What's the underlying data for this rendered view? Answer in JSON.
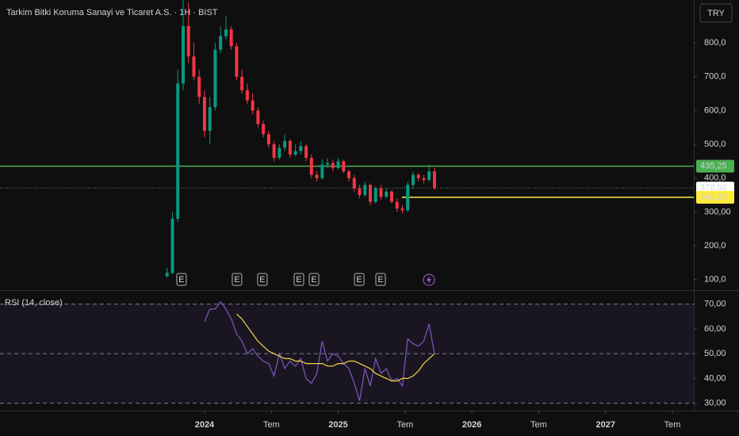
{
  "chart_data": {
    "type": "candlestick",
    "title": "Tarkim Bitki Koruma Sanayi ve Ticaret A.S. · 1H · BIST",
    "currency": "TRY",
    "up_color": "#089981",
    "down_color": "#f23645",
    "x": [
      2023.72,
      2023.76,
      2023.8,
      2023.84,
      2023.88,
      2023.92,
      2023.96,
      2024.0,
      2024.04,
      2024.08,
      2024.12,
      2024.16,
      2024.2,
      2024.24,
      2024.28,
      2024.32,
      2024.36,
      2024.4,
      2024.44,
      2024.48,
      2024.52,
      2024.56,
      2024.6,
      2024.64,
      2024.68,
      2024.72,
      2024.76,
      2024.8,
      2024.84,
      2024.88,
      2024.92,
      2024.96,
      2025.0,
      2025.04,
      2025.08,
      2025.12,
      2025.16,
      2025.2,
      2025.24,
      2025.28,
      2025.32,
      2025.36,
      2025.4,
      2025.44,
      2025.48,
      2025.52,
      2025.56,
      2025.6,
      2025.64,
      2025.68,
      2025.72
    ],
    "open": [
      110,
      120,
      280,
      680,
      850,
      760,
      700,
      640,
      540,
      610,
      780,
      820,
      840,
      790,
      700,
      660,
      630,
      600,
      560,
      530,
      500,
      460,
      490,
      510,
      470,
      480,
      495,
      460,
      410,
      400,
      440,
      445,
      430,
      450,
      420,
      400,
      370,
      350,
      380,
      330,
      370,
      345,
      360,
      330,
      310,
      305,
      380,
      410,
      400,
      395,
      420
    ],
    "high": [
      135,
      300,
      720,
      930,
      920,
      800,
      720,
      660,
      640,
      800,
      850,
      880,
      850,
      800,
      720,
      680,
      650,
      610,
      570,
      540,
      510,
      500,
      530,
      515,
      500,
      510,
      500,
      470,
      420,
      455,
      460,
      455,
      460,
      455,
      425,
      410,
      380,
      390,
      385,
      375,
      380,
      370,
      365,
      340,
      320,
      390,
      420,
      415,
      410,
      440,
      430
    ],
    "low": [
      105,
      115,
      270,
      660,
      740,
      690,
      620,
      520,
      500,
      600,
      770,
      810,
      780,
      690,
      650,
      620,
      590,
      550,
      520,
      490,
      450,
      455,
      480,
      460,
      465,
      470,
      450,
      400,
      390,
      395,
      430,
      420,
      425,
      415,
      390,
      360,
      340,
      345,
      320,
      325,
      335,
      340,
      325,
      300,
      295,
      300,
      370,
      390,
      385,
      390,
      365
    ],
    "close": [
      120,
      280,
      680,
      850,
      760,
      700,
      640,
      540,
      610,
      780,
      820,
      840,
      790,
      700,
      660,
      630,
      600,
      560,
      530,
      500,
      460,
      490,
      510,
      470,
      480,
      495,
      460,
      410,
      400,
      440,
      445,
      430,
      450,
      420,
      400,
      370,
      350,
      380,
      330,
      370,
      345,
      360,
      330,
      310,
      305,
      380,
      410,
      400,
      395,
      420,
      370
    ],
    "ylim": [
      71,
      927
    ],
    "yticks": [
      {
        "value": 100,
        "label": "100,0"
      },
      {
        "value": 200,
        "label": "200,0"
      },
      {
        "value": 300,
        "label": "300,00"
      },
      {
        "value": 400,
        "label": "400,0"
      },
      {
        "value": 500,
        "label": "500,0"
      },
      {
        "value": 600,
        "label": "600,0"
      },
      {
        "value": 700,
        "label": "700,0"
      },
      {
        "value": 800,
        "label": "800,0"
      }
    ],
    "xlim": [
      2022.47,
      2027.66
    ],
    "xticks": [
      {
        "value": 2024,
        "label": "2024"
      },
      {
        "value": 2024.5,
        "label": "Tem"
      },
      {
        "value": 2025,
        "label": "2025"
      },
      {
        "value": 2025.5,
        "label": "Tem"
      },
      {
        "value": 2026,
        "label": "2026"
      },
      {
        "value": 2026.5,
        "label": "Tem"
      },
      {
        "value": 2027,
        "label": "2027"
      },
      {
        "value": 2027.5,
        "label": "Tem"
      }
    ],
    "levels": [
      {
        "value": 435.25,
        "label": "435,25",
        "color": "#4caf50"
      },
      {
        "value": 370.5,
        "label": "370,50",
        "color": "#ffffff"
      },
      {
        "value": 343.25,
        "label": "343,25",
        "color": "#ffeb3b"
      }
    ],
    "events": [
      {
        "x": 2023.828,
        "label": "E"
      },
      {
        "x": 2024.243,
        "label": "E"
      },
      {
        "x": 2024.433,
        "label": "E"
      },
      {
        "x": 2024.706,
        "label": "E"
      },
      {
        "x": 2024.819,
        "label": "E"
      },
      {
        "x": 2025.157,
        "label": "E"
      },
      {
        "x": 2025.317,
        "label": "E"
      }
    ],
    "indicator": {
      "type": "line",
      "title": "RSI (14, close)",
      "ylim": [
        27,
        75
      ],
      "yticks": [
        {
          "value": 30,
          "label": "30,00"
        },
        {
          "value": 40,
          "label": "40,00"
        },
        {
          "value": 50,
          "label": "50,00"
        },
        {
          "value": 60,
          "label": "60,00"
        },
        {
          "value": 70,
          "label": "70,00"
        }
      ],
      "bands": [
        30,
        50,
        70
      ],
      "series": [
        {
          "color": "#7e57c2",
          "values": [
            null,
            null,
            null,
            null,
            null,
            null,
            null,
            63,
            68,
            68,
            71,
            68,
            64,
            58,
            55,
            50,
            52,
            49,
            47,
            46,
            41,
            50,
            44,
            47,
            45,
            48,
            40,
            38,
            42,
            55,
            47,
            50,
            49,
            46,
            44,
            38,
            31,
            44,
            37,
            48,
            42,
            44,
            39,
            40,
            37,
            56,
            54,
            53,
            55,
            62,
            50
          ]
        },
        {
          "color": "#f5d547",
          "values": [
            null,
            null,
            null,
            null,
            null,
            null,
            null,
            null,
            null,
            null,
            null,
            null,
            null,
            66,
            64,
            61,
            58,
            55,
            53,
            51,
            50,
            49,
            48,
            48,
            47,
            47,
            46,
            46,
            46,
            46,
            45,
            45,
            46,
            46,
            47,
            47,
            46,
            45,
            44,
            42,
            41,
            40,
            39,
            39,
            40,
            40,
            41,
            43,
            46,
            48,
            50
          ]
        }
      ]
    }
  }
}
